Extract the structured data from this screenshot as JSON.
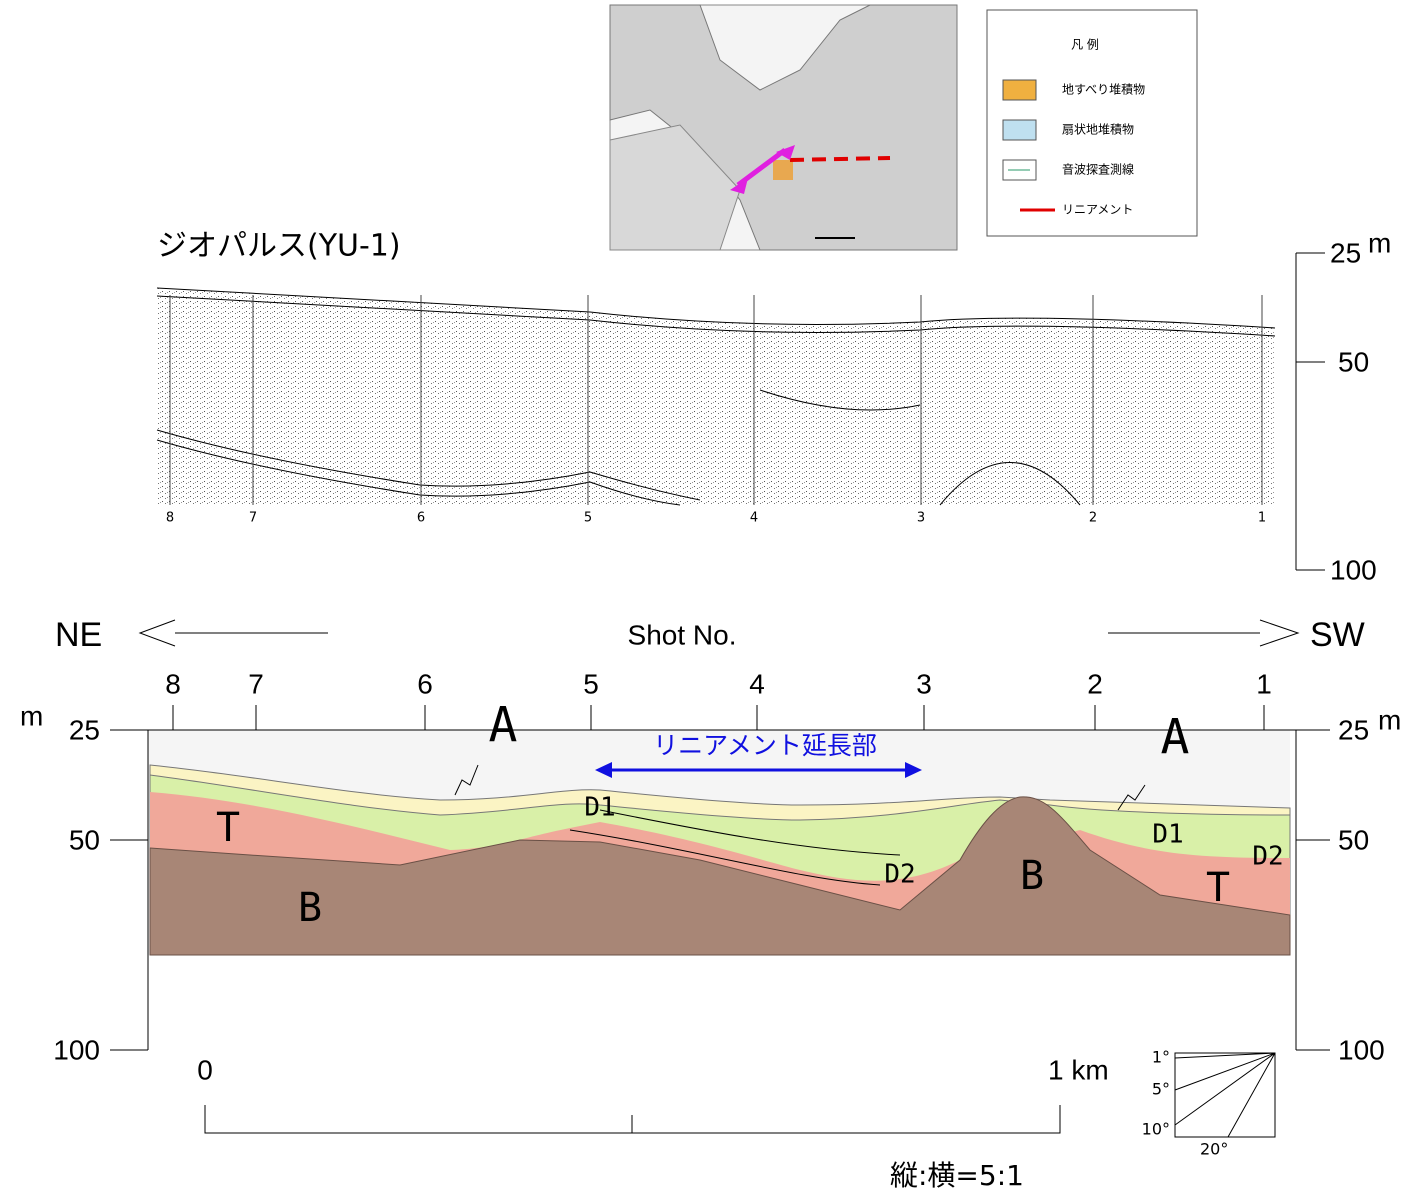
{
  "map_legend": {
    "title": "凡 例",
    "items": [
      "地すべり堆積物",
      "扇状地堆積物",
      "音波探査測線",
      "リニアメント"
    ]
  },
  "seismic_profile": {
    "title": "ジオパルス(YU-1)",
    "shot_numbers": [
      "8",
      "7",
      "6",
      "5",
      "4",
      "3",
      "2",
      "1"
    ],
    "depth_scale": {
      "unit": "m",
      "ticks": [
        "25",
        "50",
        "100"
      ]
    }
  },
  "interpreted_section": {
    "direction_left": "NE",
    "direction_right": "SW",
    "axis_title": "Shot No.",
    "shot_numbers": [
      "8",
      "7",
      "6",
      "5",
      "4",
      "3",
      "2",
      "1"
    ],
    "depth_left": {
      "unit": "m",
      "ticks": [
        "25",
        "50",
        "100"
      ]
    },
    "depth_right": {
      "unit": "m",
      "ticks": [
        "25",
        "50",
        "100"
      ]
    },
    "annotation": "リニアメント延長部",
    "layer_labels": [
      "A",
      "A",
      "T",
      "T",
      "B",
      "B",
      "D1",
      "D1",
      "D2",
      "D2"
    ],
    "scale_bar": {
      "start": "0",
      "end": "1 km",
      "ratio": "縦:横=5:1"
    },
    "slope_angles": [
      "1°",
      "5°",
      "10°",
      "20°"
    ]
  }
}
